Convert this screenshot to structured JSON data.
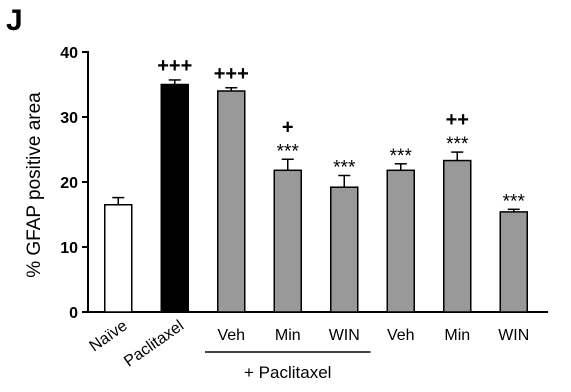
{
  "panel_label": "J",
  "chart_data": {
    "type": "bar",
    "ylabel": "% GFAP positive area",
    "ylim": [
      0,
      40
    ],
    "yticks": [
      0,
      10,
      20,
      30,
      40
    ],
    "categories": [
      "Naïve",
      "Paclitaxel",
      "Veh",
      "Min",
      "WIN",
      "Veh",
      "Min",
      "WIN"
    ],
    "values": [
      16.5,
      35.0,
      34.0,
      21.8,
      19.2,
      21.8,
      23.3,
      15.4
    ],
    "errors": [
      1.1,
      0.7,
      0.5,
      1.7,
      1.8,
      1.0,
      1.3,
      0.4
    ],
    "bar_colors": [
      "#ffffff",
      "#000000",
      "#999999",
      "#999999",
      "#999999",
      "#999999",
      "#999999",
      "#999999"
    ],
    "annotations": [
      {
        "bar": 1,
        "lines": [
          "+++"
        ]
      },
      {
        "bar": 2,
        "lines": [
          "+++"
        ]
      },
      {
        "bar": 3,
        "lines": [
          "+",
          "***"
        ]
      },
      {
        "bar": 4,
        "lines": [
          "***"
        ]
      },
      {
        "bar": 5,
        "lines": [
          "***"
        ]
      },
      {
        "bar": 6,
        "lines": [
          "++",
          "***"
        ]
      },
      {
        "bar": 7,
        "lines": [
          "***"
        ]
      }
    ],
    "group_bracket": {
      "label": "+ Paclitaxel",
      "from_bar": 2,
      "to_bar": 4
    },
    "rotated_labels": [
      0,
      1
    ]
  }
}
